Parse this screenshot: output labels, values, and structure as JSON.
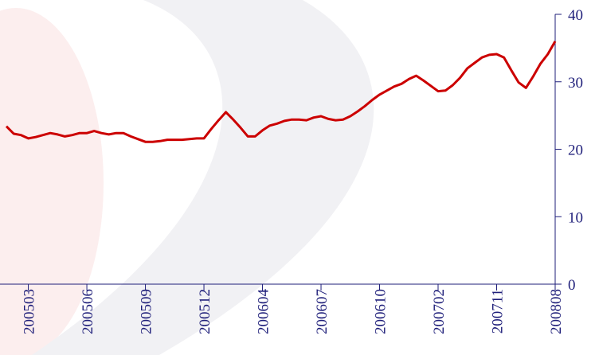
{
  "chart_data": {
    "type": "line",
    "categories": [
      null,
      null,
      null,
      "200503",
      null,
      null,
      null,
      null,
      null,
      null,
      null,
      "200506",
      null,
      null,
      null,
      null,
      null,
      null,
      null,
      "200509",
      null,
      null,
      null,
      null,
      null,
      null,
      null,
      "200512",
      null,
      null,
      null,
      null,
      null,
      null,
      null,
      "200604",
      null,
      null,
      null,
      null,
      null,
      null,
      null,
      "200607",
      null,
      null,
      null,
      null,
      null,
      null,
      null,
      "200610",
      null,
      null,
      null,
      null,
      null,
      null,
      null,
      "200702",
      null,
      null,
      null,
      null,
      null,
      null,
      null,
      "200711",
      null,
      null,
      null,
      null,
      null,
      null,
      null,
      "200808"
    ],
    "series": [
      {
        "color": "#cc0000",
        "values": [
          23.4,
          22.3,
          22.1,
          21.6,
          21.8,
          22.1,
          22.4,
          22.2,
          21.9,
          22.1,
          22.4,
          22.4,
          22.7,
          22.4,
          22.2,
          22.4,
          22.4,
          21.9,
          21.5,
          21.1,
          21.1,
          21.2,
          21.4,
          21.4,
          21.4,
          21.5,
          21.6,
          21.6,
          23.0,
          24.3,
          25.5,
          24.4,
          23.2,
          21.9,
          21.9,
          22.8,
          23.5,
          23.8,
          24.2,
          24.4,
          24.4,
          24.3,
          24.7,
          24.9,
          24.5,
          24.3,
          24.4,
          24.9,
          25.6,
          26.4,
          27.3,
          28.1,
          28.7,
          29.3,
          29.7,
          30.4,
          30.9,
          30.2,
          29.4,
          28.6,
          28.7,
          29.5,
          30.6,
          32.0,
          32.8,
          33.6,
          34.0,
          34.1,
          33.6,
          31.7,
          29.9,
          29.1,
          30.8,
          32.7,
          34.1,
          36.0
        ]
      }
    ],
    "ylim": [
      0,
      40
    ],
    "yticks": [
      0,
      10,
      20,
      30,
      40
    ]
  }
}
